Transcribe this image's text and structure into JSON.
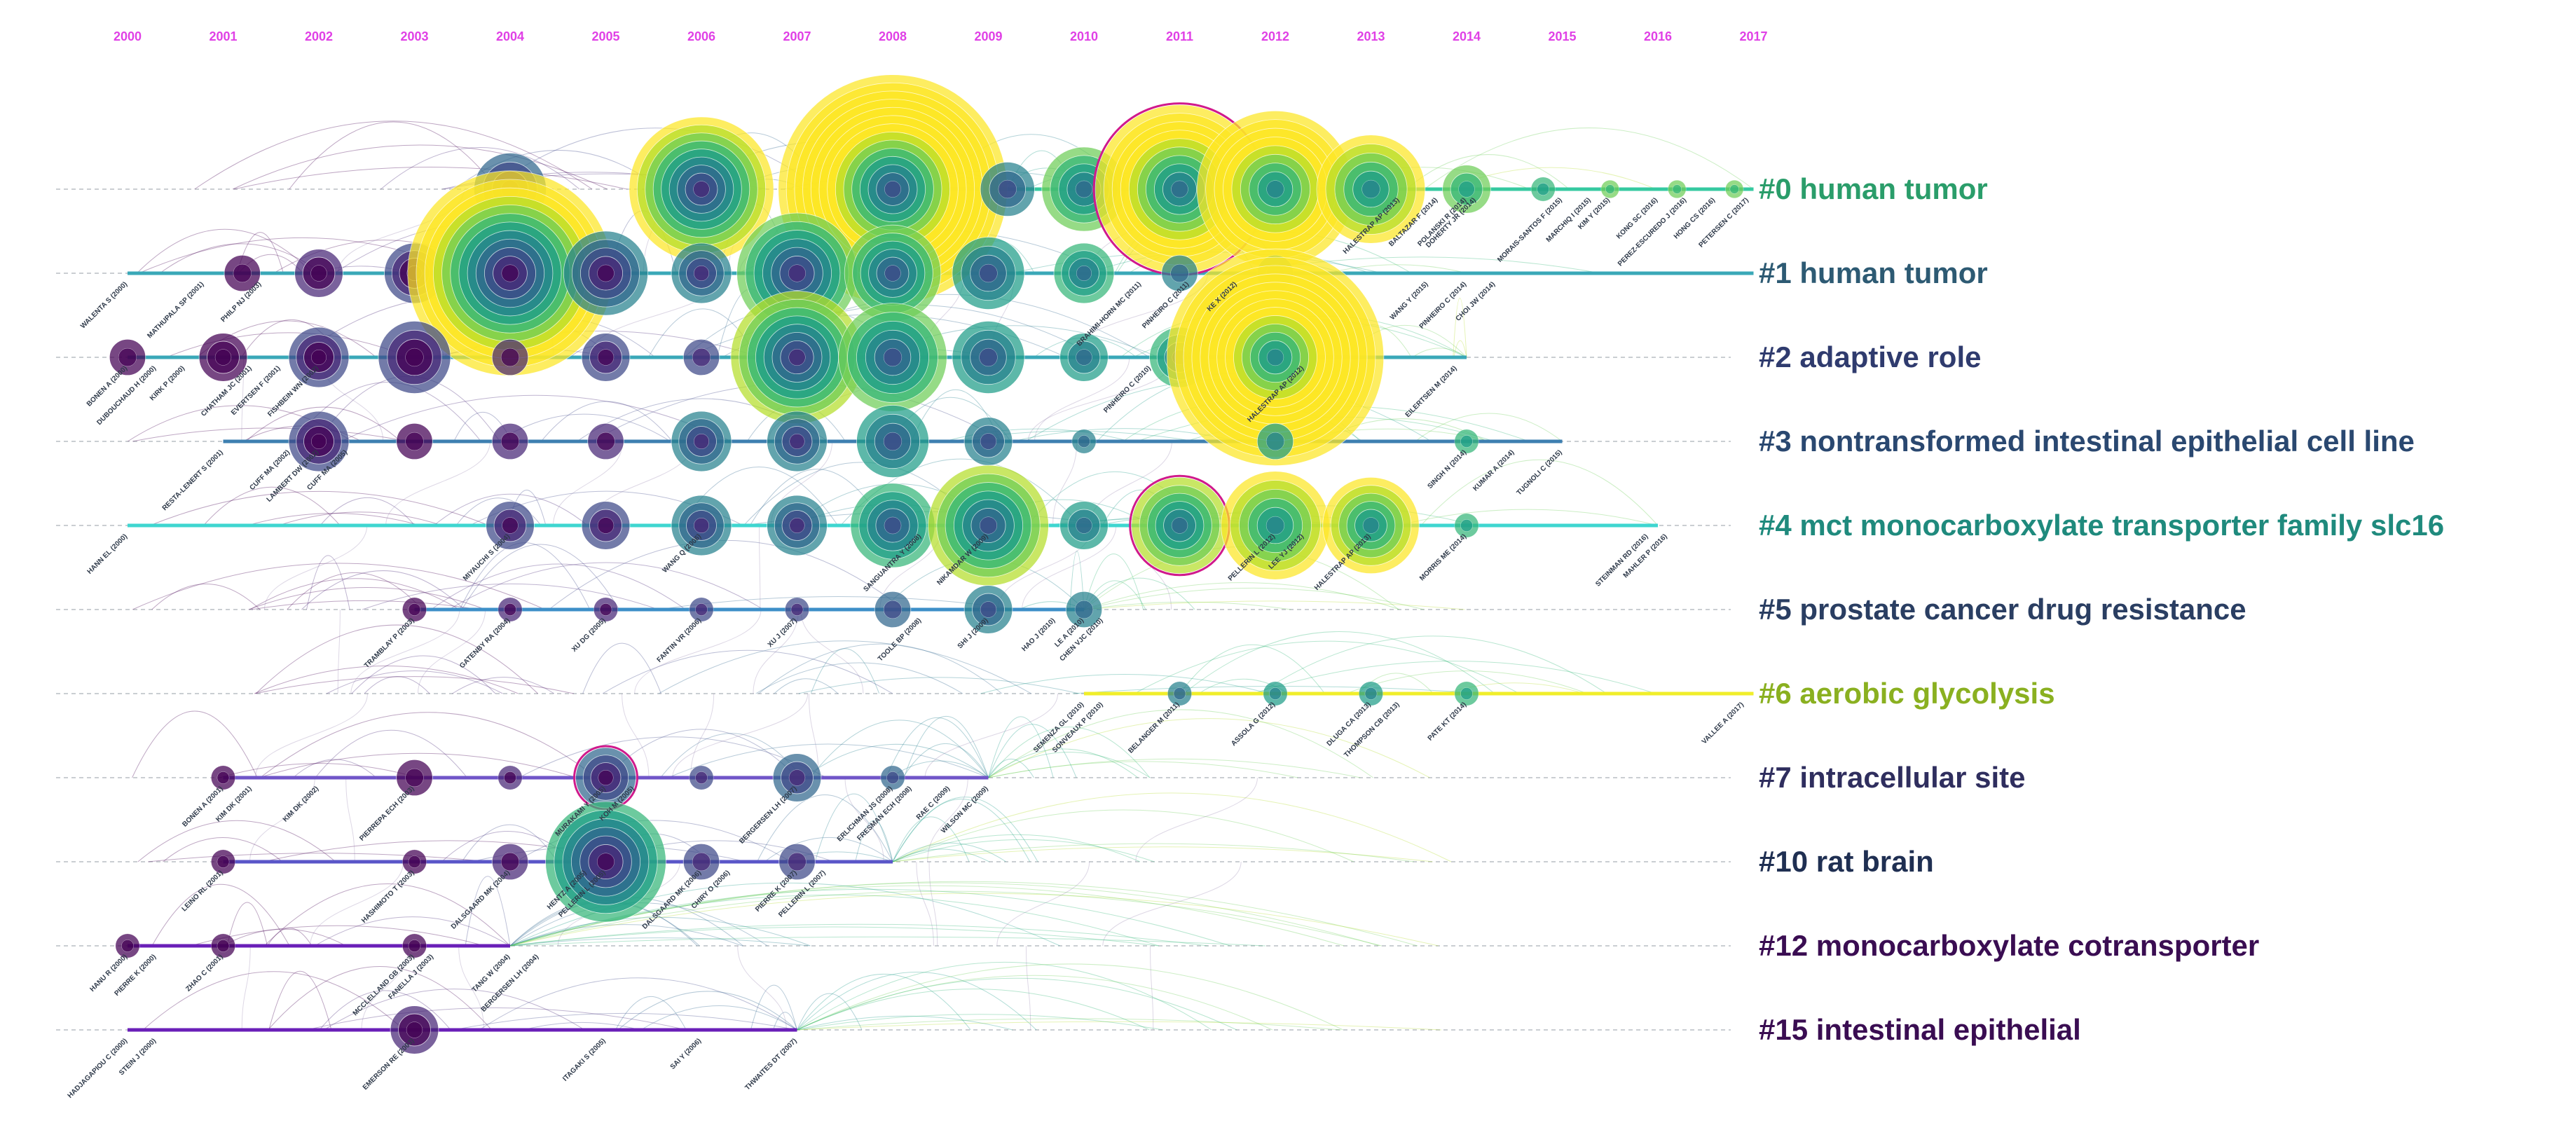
{
  "years": [
    "2000",
    "2001",
    "2002",
    "2003",
    "2004",
    "2005",
    "2006",
    "2007",
    "2008",
    "2009",
    "2010",
    "2011",
    "2012",
    "2013",
    "2014",
    "2015",
    "2016",
    "2017"
  ],
  "colors": {
    "year": "#e040e6",
    "lane_dash": "#b9bec4",
    "link": "#8f7aa8",
    "burst_ring": "#d01a8c",
    "palette": [
      "#440154",
      "#482777",
      "#3e4989",
      "#31688e",
      "#26828e",
      "#1f9e89",
      "#35b779",
      "#6ece58",
      "#b5de2b",
      "#fde725"
    ]
  },
  "clusters": [
    {
      "id": "#0",
      "name": "human tumor",
      "color": "#2a9d6a",
      "line_color": "#35c9a0",
      "start": 2008.5,
      "end": 2017,
      "nodes": [
        [
          2004.0,
          12
        ],
        [
          2006.0,
          24
        ],
        [
          2008.0,
          38
        ],
        [
          2009.2,
          9
        ],
        [
          2010.0,
          14
        ],
        [
          2011.0,
          28
        ],
        [
          2012.0,
          26
        ],
        [
          2013.0,
          18
        ],
        [
          2014.0,
          8
        ],
        [
          2014.8,
          4
        ],
        [
          2015.5,
          3
        ],
        [
          2016.2,
          3
        ],
        [
          2016.8,
          3
        ]
      ],
      "authors": [
        {
          "t": "MORAIS-SANTOS F (2015)",
          "y": 2015.0
        },
        {
          "t": "MARCHIQ I (2015)",
          "y": 2015.3
        },
        {
          "t": "KIM Y (2015)",
          "y": 2015.5
        },
        {
          "t": "KONG SC (2016)",
          "y": 2016.0
        },
        {
          "t": "PEREZ-ESCUREDO J (2016)",
          "y": 2016.3
        },
        {
          "t": "HONG CS (2016)",
          "y": 2016.6
        },
        {
          "t": "PETERSEN C (2017)",
          "y": 2016.95
        },
        {
          "t": "DOHERTY JR (2014)",
          "y": 2014.1
        },
        {
          "t": "POLANSKI R (2014)",
          "y": 2014.0
        },
        {
          "t": "HALESTRAP AP (2013)",
          "y": 2013.3
        },
        {
          "t": "BALTAZAR F (2014)",
          "y": 2013.7
        }
      ]
    },
    {
      "id": "#1",
      "name": "human tumor",
      "color": "#2d5a73",
      "line_color": "#3aa8b8",
      "start": 2000,
      "end": 2017,
      "nodes": [
        [
          2001.2,
          6
        ],
        [
          2002.0,
          8
        ],
        [
          2003.0,
          10
        ],
        [
          2004.0,
          34
        ],
        [
          2005.0,
          14
        ],
        [
          2006.0,
          10
        ],
        [
          2007.0,
          20
        ],
        [
          2008.0,
          16
        ],
        [
          2009.0,
          12
        ],
        [
          2010.0,
          10
        ],
        [
          2011.0,
          6
        ],
        [
          2012.0,
          6
        ]
      ],
      "authors": [
        {
          "t": "WALENTA S (2000)",
          "y": 2000.0
        },
        {
          "t": "MATHUPALA SP (2001)",
          "y": 2000.8
        },
        {
          "t": "PHILP NJ (2003)",
          "y": 2001.4
        },
        {
          "t": "BRAHIMI-HORN MC (2011)",
          "y": 2010.6
        },
        {
          "t": "PINHEIRO C (2011)",
          "y": 2011.1
        },
        {
          "t": "KE X (2012)",
          "y": 2011.6
        },
        {
          "t": "WANG Y (2015)",
          "y": 2013.6
        },
        {
          "t": "PINHEIRO C (2014)",
          "y": 2014.0
        },
        {
          "t": "CHOI JW (2014)",
          "y": 2014.3
        }
      ]
    },
    {
      "id": "#2",
      "name": "adaptive role",
      "color": "#2f3b6e",
      "line_color": "#3aa8b8",
      "start": 2000,
      "end": 2014,
      "nodes": [
        [
          2000.0,
          6
        ],
        [
          2001.0,
          8
        ],
        [
          2002.0,
          10
        ],
        [
          2003.0,
          12
        ],
        [
          2004.0,
          6
        ],
        [
          2005.0,
          8
        ],
        [
          2006.0,
          6
        ],
        [
          2007.0,
          22
        ],
        [
          2008.0,
          18
        ],
        [
          2009.0,
          12
        ],
        [
          2010.0,
          8
        ],
        [
          2011.0,
          10
        ],
        [
          2012.0,
          36
        ]
      ],
      "authors": [
        {
          "t": "BONEN A (2000)",
          "y": 2000.0
        },
        {
          "t": "DUBOUCHAUD H (2000)",
          "y": 2000.3
        },
        {
          "t": "KIRK P (2000)",
          "y": 2000.6
        },
        {
          "t": "CHATHAM JC (2001)",
          "y": 2001.3
        },
        {
          "t": "EVERTSEN F (2001)",
          "y": 2001.6
        },
        {
          "t": "FISHBEIN WN (2002)",
          "y": 2002.0
        },
        {
          "t": "PINHEIRO C (2010)",
          "y": 2010.7
        },
        {
          "t": "HALESTRAP AP (2012)",
          "y": 2012.3
        },
        {
          "t": "EILERTSEN M (2014)",
          "y": 2013.9
        }
      ]
    },
    {
      "id": "#3",
      "name": "nontransformed intestinal epithelial cell line",
      "color": "#2a4870",
      "line_color": "#3d7fb0",
      "start": 2001,
      "end": 2015,
      "nodes": [
        [
          2002.0,
          10
        ],
        [
          2003.0,
          6
        ],
        [
          2004.0,
          6
        ],
        [
          2005.0,
          6
        ],
        [
          2006.0,
          10
        ],
        [
          2007.0,
          10
        ],
        [
          2008.0,
          12
        ],
        [
          2009.0,
          8
        ],
        [
          2010.0,
          4
        ],
        [
          2012.0,
          6
        ],
        [
          2014.0,
          4
        ]
      ],
      "authors": [
        {
          "t": "RESTA-LENERT S (2001)",
          "y": 2001.0
        },
        {
          "t": "CUFF MA (2002)",
          "y": 2001.7
        },
        {
          "t": "LAMBERT DW (2002)",
          "y": 2002.0
        },
        {
          "t": "CUFF MA (2005)",
          "y": 2002.3
        },
        {
          "t": "SINGH N (2014)",
          "y": 2014.0
        },
        {
          "t": "KUMAR A (2014)",
          "y": 2014.5
        },
        {
          "t": "TUGNOLI C (2015)",
          "y": 2015.0
        }
      ]
    },
    {
      "id": "#4",
      "name": "mct monocarboxylate transporter family slc16",
      "color": "#1f8a7d",
      "line_color": "#3fd6d0",
      "start": 2000,
      "end": 2016,
      "nodes": [
        [
          2004.0,
          8
        ],
        [
          2005.0,
          8
        ],
        [
          2006.0,
          10
        ],
        [
          2007.0,
          10
        ],
        [
          2008.0,
          14
        ],
        [
          2009.0,
          20
        ],
        [
          2010.0,
          8
        ],
        [
          2011.0,
          16
        ],
        [
          2012.0,
          18
        ],
        [
          2013.0,
          16
        ],
        [
          2014.0,
          4
        ]
      ],
      "authors": [
        {
          "t": "HANN EL (2000)",
          "y": 2000.0
        },
        {
          "t": "MIYAUCHI S (2004)",
          "y": 2004.0
        },
        {
          "t": "WANG Q (2006)",
          "y": 2006.0
        },
        {
          "t": "SANGUANTRA Y (2008)",
          "y": 2008.3
        },
        {
          "t": "NIKAMDAR W (2009)",
          "y": 2009.0
        },
        {
          "t": "PELLERIN L (2012)",
          "y": 2012.0
        },
        {
          "t": "LEE YJ (2012)",
          "y": 2012.3
        },
        {
          "t": "HALESTRAP AP (2013)",
          "y": 2013.0
        },
        {
          "t": "MORRIS ME (2014)",
          "y": 2014.0
        },
        {
          "t": "STEINMAN RD (2016)",
          "y": 2015.9
        },
        {
          "t": "MAHLER P (2016)",
          "y": 2016.1
        }
      ]
    },
    {
      "id": "#5",
      "name": "prostate cancer drug resistance",
      "color": "#2a3e62",
      "line_color": "#3d8fc8",
      "start": 2003,
      "end": 2010,
      "nodes": [
        [
          2003.0,
          4
        ],
        [
          2004.0,
          4
        ],
        [
          2005.0,
          4
        ],
        [
          2006.0,
          4
        ],
        [
          2007.0,
          4
        ],
        [
          2008.0,
          6
        ],
        [
          2009.0,
          8
        ],
        [
          2010.0,
          6
        ]
      ],
      "authors": [
        {
          "t": "TRAMBLAY P (2003)",
          "y": 2003.0
        },
        {
          "t": "GATENBY RA (2004)",
          "y": 2004.0
        },
        {
          "t": "XU DG (2005)",
          "y": 2005.0
        },
        {
          "t": "FANTIN VR (2006)",
          "y": 2006.0
        },
        {
          "t": "XU J (2007)",
          "y": 2007.0
        },
        {
          "t": "TOOLE BP (2008)",
          "y": 2008.3
        },
        {
          "t": "SHI J (2009)",
          "y": 2009.0
        },
        {
          "t": "HAO J (2010)",
          "y": 2009.7
        },
        {
          "t": "LE A (2010)",
          "y": 2010.0
        },
        {
          "t": "CHEN VJC (2010)",
          "y": 2010.2
        }
      ]
    },
    {
      "id": "#6",
      "name": "aerobic glycolysis",
      "color": "#8ab020",
      "line_color": "#f0ee2a",
      "start": 2010,
      "end": 2017,
      "nodes": [
        [
          2011.0,
          4
        ],
        [
          2012.0,
          4
        ],
        [
          2013.0,
          4
        ],
        [
          2014.0,
          4
        ]
      ],
      "authors": [
        {
          "t": "SEMENZA GL (2010)",
          "y": 2010.0
        },
        {
          "t": "SONVEAUX P (2010)",
          "y": 2010.2
        },
        {
          "t": "BELANGER M (2011)",
          "y": 2011.0
        },
        {
          "t": "ASSOLA G (2012)",
          "y": 2012.0
        },
        {
          "t": "DLUGA CA (2013)",
          "y": 2013.0
        },
        {
          "t": "THOMPSON CB (2013)",
          "y": 2013.3
        },
        {
          "t": "PATE KT (2014)",
          "y": 2014.0
        },
        {
          "t": "VALLEE A (2017)",
          "y": 2016.9
        }
      ]
    },
    {
      "id": "#7",
      "name": "intracellular site",
      "color": "#2f2e5e",
      "line_color": "#7055c8",
      "start": 2001,
      "end": 2009,
      "nodes": [
        [
          2001.0,
          4
        ],
        [
          2003.0,
          6
        ],
        [
          2004.0,
          4
        ],
        [
          2005.0,
          10
        ],
        [
          2006.0,
          4
        ],
        [
          2007.0,
          8
        ],
        [
          2008.0,
          4
        ]
      ],
      "authors": [
        {
          "t": "BONEN A (2001)",
          "y": 2001.0
        },
        {
          "t": "KIM DK (2001)",
          "y": 2001.3
        },
        {
          "t": "KIM DK (2002)",
          "y": 2002.0
        },
        {
          "t": "PIERREPA ECH (2003)",
          "y": 2003.0
        },
        {
          "t": "MURAKAMI Y (2005)",
          "y": 2005.0
        },
        {
          "t": "KOH M (2005)",
          "y": 2005.3
        },
        {
          "t": "BERGERSEN LH (2007)",
          "y": 2007.0
        },
        {
          "t": "ERLICHMAN JS (2008)",
          "y": 2008.0
        },
        {
          "t": "FRESMAN ECH (2008)",
          "y": 2008.2
        },
        {
          "t": "RAE C (2009)",
          "y": 2008.6
        },
        {
          "t": "WILSON MC (2009)",
          "y": 2009.0
        }
      ]
    },
    {
      "id": "#10",
      "name": "rat brain",
      "color": "#1f2f52",
      "line_color": "#5a56c8",
      "start": 2001,
      "end": 2008,
      "nodes": [
        [
          2001.0,
          4
        ],
        [
          2003.0,
          4
        ],
        [
          2004.0,
          6
        ],
        [
          2005.0,
          20
        ],
        [
          2006.0,
          6
        ],
        [
          2007.0,
          6
        ]
      ],
      "authors": [
        {
          "t": "LEINO RL (2001)",
          "y": 2001.0
        },
        {
          "t": "HASHIMOTO T (2003)",
          "y": 2003.0
        },
        {
          "t": "DALSGAARD MK (2004)",
          "y": 2004.0
        },
        {
          "t": "HENTZ A (2005)",
          "y": 2004.8
        },
        {
          "t": "PELLERIN L (2005)",
          "y": 2005.0
        },
        {
          "t": "DALSGAARD MK (2006)",
          "y": 2006.0
        },
        {
          "t": "CHIRY O (2006)",
          "y": 2006.3
        },
        {
          "t": "PIERRE K (2007)",
          "y": 2007.0
        },
        {
          "t": "PELLERIN L (2007)",
          "y": 2007.3
        }
      ]
    },
    {
      "id": "#12",
      "name": "monocarboxylate cotransporter",
      "color": "#3a0d52",
      "line_color": "#6a1fb8",
      "start": 2000,
      "end": 2004,
      "nodes": [
        [
          2000.0,
          4
        ],
        [
          2001.0,
          4
        ],
        [
          2003.0,
          4
        ]
      ],
      "authors": [
        {
          "t": "HANU R (2000)",
          "y": 2000.0
        },
        {
          "t": "PIERRE K (2000)",
          "y": 2000.3
        },
        {
          "t": "ZHAO C (2001)",
          "y": 2001.0
        },
        {
          "t": "MCCLELLAND GB (2003)",
          "y": 2003.0
        },
        {
          "t": "FANELLA J (2003)",
          "y": 2003.2
        },
        {
          "t": "TANG W (2004)",
          "y": 2004.0
        },
        {
          "t": "BERGERSEN LH (2004)",
          "y": 2004.3
        }
      ]
    },
    {
      "id": "#15",
      "name": "intestinal epithelial",
      "color": "#3a0d52",
      "line_color": "#6a1fb8",
      "start": 2000,
      "end": 2007,
      "nodes": [
        [
          2003.0,
          8
        ]
      ],
      "authors": [
        {
          "t": "HADJAGAPIOU C (2000)",
          "y": 2000.0
        },
        {
          "t": "STEIN J (2000)",
          "y": 2000.3
        },
        {
          "t": "EMERSON RE (2003)",
          "y": 2003.0
        },
        {
          "t": "ITAGAKI S (2005)",
          "y": 2005.0
        },
        {
          "t": "SAI Y (2006)",
          "y": 2006.0
        },
        {
          "t": "THWAITES DT (2007)",
          "y": 2007.0
        }
      ]
    }
  ]
}
